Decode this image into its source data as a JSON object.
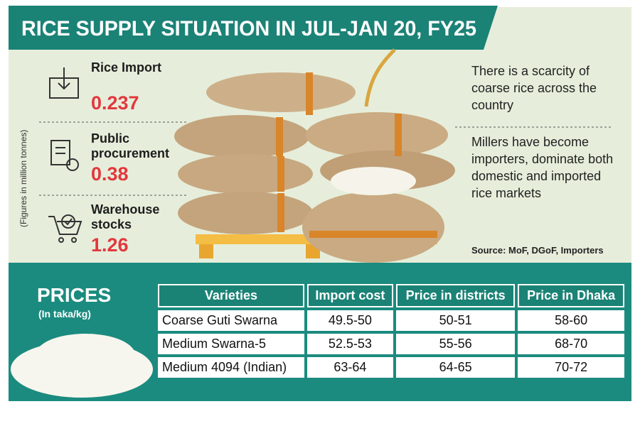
{
  "title": "RICE SUPPLY SITUATION IN JUL-JAN 20, FY25",
  "side_note": "(Figures in million tonnes)",
  "stats": [
    {
      "label": "Rice Import",
      "value": 0.237
    },
    {
      "label": "Public procurement",
      "value": 0.38
    },
    {
      "label": "Warehouse stocks",
      "value": 1.26
    }
  ],
  "notes": [
    "There is a scarcity of coarse rice across the country",
    "Millers have become importers, dominate both domestic and imported rice markets"
  ],
  "source": "Source: MoF, DGoF, Importers",
  "prices": {
    "title": "PRICES",
    "unit": "(In taka/kg)",
    "table": {
      "headers": [
        "Varieties",
        "Import cost",
        "Price in districts",
        "Price in Dhaka"
      ],
      "rows": [
        [
          "Coarse Guti Swarna",
          "49.5-50",
          "50-51",
          "58-60"
        ],
        [
          "Medium Swarna-5",
          "52.5-53",
          "55-56",
          "68-70"
        ],
        [
          "Medium 4094 (Indian)",
          "63-64",
          "64-65",
          "70-72"
        ]
      ]
    }
  }
}
